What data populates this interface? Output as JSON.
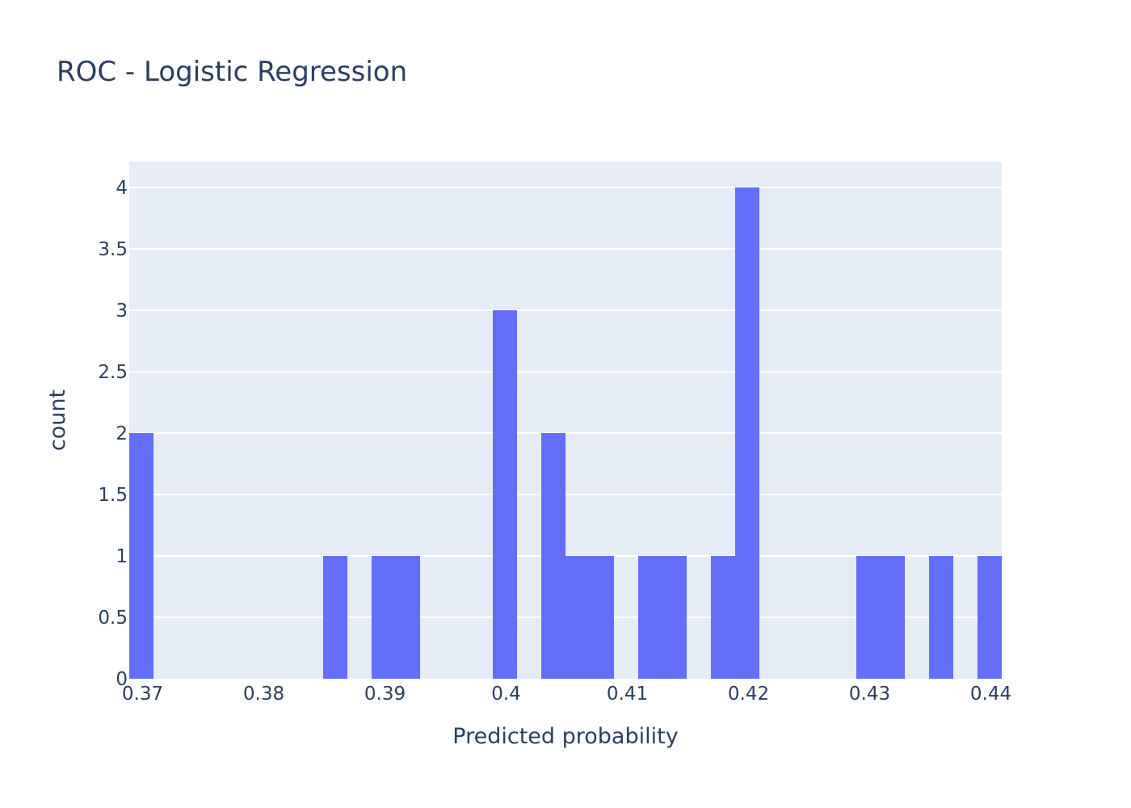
{
  "chart_data": {
    "type": "bar",
    "title": "ROC - Logistic Regression",
    "xlabel": "Predicted probability",
    "ylabel": "count",
    "xlim": [
      0.3689,
      0.4409
    ],
    "ylim": [
      0,
      4.2105
    ],
    "x_ticks": [
      {
        "value": 0.37,
        "label": "0.37"
      },
      {
        "value": 0.38,
        "label": "0.38"
      },
      {
        "value": 0.39,
        "label": "0.39"
      },
      {
        "value": 0.4,
        "label": "0.4"
      },
      {
        "value": 0.41,
        "label": "0.41"
      },
      {
        "value": 0.42,
        "label": "0.42"
      },
      {
        "value": 0.43,
        "label": "0.43"
      },
      {
        "value": 0.44,
        "label": "0.44"
      }
    ],
    "y_ticks": [
      {
        "value": 0,
        "label": "0"
      },
      {
        "value": 0.5,
        "label": "0.5"
      },
      {
        "value": 1,
        "label": "1"
      },
      {
        "value": 1.5,
        "label": "1.5"
      },
      {
        "value": 2,
        "label": "2"
      },
      {
        "value": 2.5,
        "label": "2.5"
      },
      {
        "value": 3,
        "label": "3"
      },
      {
        "value": 3.5,
        "label": "3.5"
      },
      {
        "value": 4,
        "label": "4"
      }
    ],
    "bins": [
      {
        "x0": 0.3689,
        "x1": 0.3709,
        "count": 2
      },
      {
        "x0": 0.3849,
        "x1": 0.3869,
        "count": 1
      },
      {
        "x0": 0.3889,
        "x1": 0.3909,
        "count": 1
      },
      {
        "x0": 0.3909,
        "x1": 0.3929,
        "count": 1
      },
      {
        "x0": 0.3989,
        "x1": 0.4009,
        "count": 3
      },
      {
        "x0": 0.4029,
        "x1": 0.4049,
        "count": 2
      },
      {
        "x0": 0.4049,
        "x1": 0.4069,
        "count": 1
      },
      {
        "x0": 0.4069,
        "x1": 0.4089,
        "count": 1
      },
      {
        "x0": 0.4109,
        "x1": 0.4129,
        "count": 1
      },
      {
        "x0": 0.4129,
        "x1": 0.4149,
        "count": 1
      },
      {
        "x0": 0.4169,
        "x1": 0.4189,
        "count": 1
      },
      {
        "x0": 0.4189,
        "x1": 0.4209,
        "count": 4
      },
      {
        "x0": 0.4289,
        "x1": 0.4309,
        "count": 1
      },
      {
        "x0": 0.4309,
        "x1": 0.4329,
        "count": 1
      },
      {
        "x0": 0.4349,
        "x1": 0.4369,
        "count": 1
      },
      {
        "x0": 0.4389,
        "x1": 0.4409,
        "count": 1
      }
    ],
    "bar_color": "#636efa",
    "plot_background": "#e5ecf6",
    "grid": true,
    "legend": "none"
  }
}
